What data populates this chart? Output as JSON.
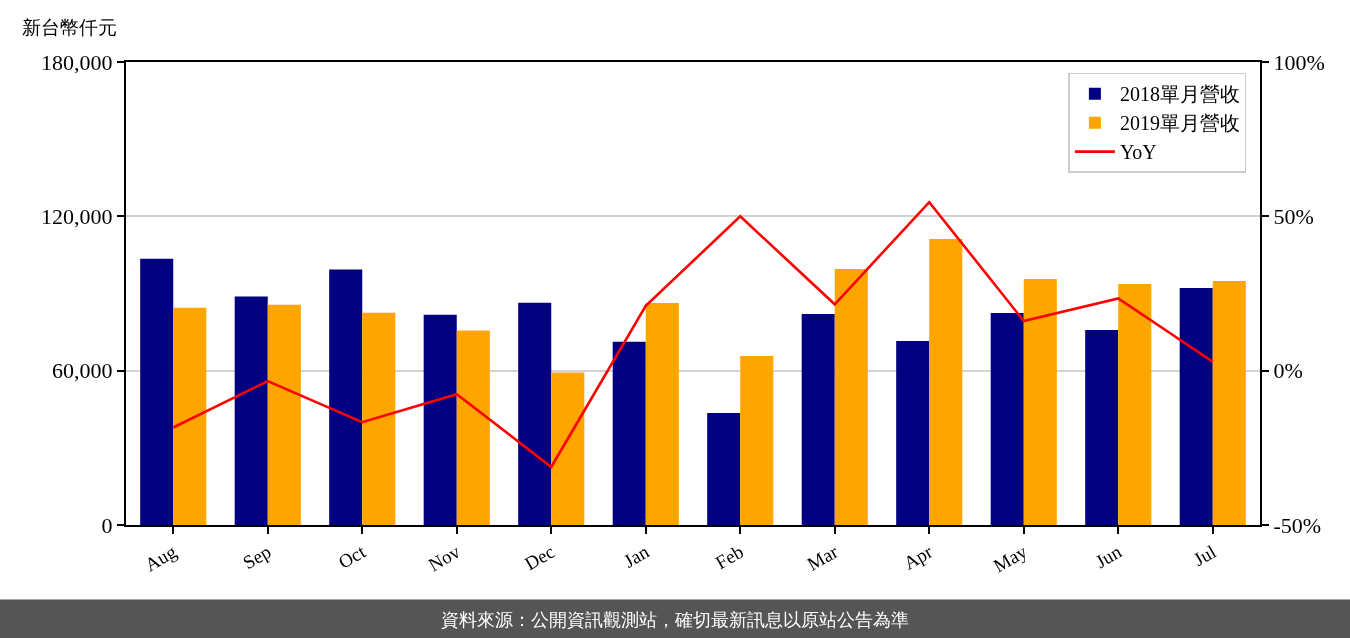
{
  "chart_data": {
    "type": "bar",
    "ylabel": "新台幣仟元",
    "categories": [
      "Aug",
      "Sep",
      "Oct",
      "Nov",
      "Dec",
      "Jan",
      "Feb",
      "Mar",
      "Apr",
      "May",
      "Jun",
      "Jul"
    ],
    "series": [
      {
        "name": "2018單月營收",
        "color": "#000080",
        "values": [
          103500,
          88800,
          99300,
          81700,
          86400,
          71200,
          43500,
          82000,
          71500,
          82400,
          75800,
          92100
        ]
      },
      {
        "name": "2019單月營收",
        "color": "#ffa500",
        "values": [
          84500,
          85600,
          82500,
          75600,
          59300,
          86300,
          65700,
          99500,
          111200,
          95600,
          93700,
          94900
        ]
      },
      {
        "name": "YoY",
        "type": "line",
        "axis": "y2",
        "color": "#ff0000",
        "values": [
          -18.4,
          -3.4,
          -16.7,
          -7.6,
          -31.2,
          21.0,
          50.0,
          21.5,
          54.6,
          16.1,
          23.4,
          2.9
        ]
      }
    ],
    "ylim": [
      0,
      180000
    ],
    "yticks": [
      0,
      {
        "value": 60000,
        "label": "60,000"
      },
      {
        "value": 120000,
        "label": "120,000"
      },
      {
        "value": 180000,
        "label": "180,000"
      }
    ],
    "y2lim": [
      -50,
      100
    ],
    "y2ticks": [
      {
        "value": -50,
        "label": "-50%"
      },
      {
        "value": 0,
        "label": "0%"
      },
      {
        "value": 50,
        "label": "50%"
      },
      {
        "value": 100,
        "label": "100%"
      }
    ],
    "grid": "y",
    "legend": "top right",
    "marker": "none",
    "line_style": "solid",
    "annotations": [
      "資料來源：公開資訊觀測站，確切最新訊息以原站公告為準"
    ]
  }
}
